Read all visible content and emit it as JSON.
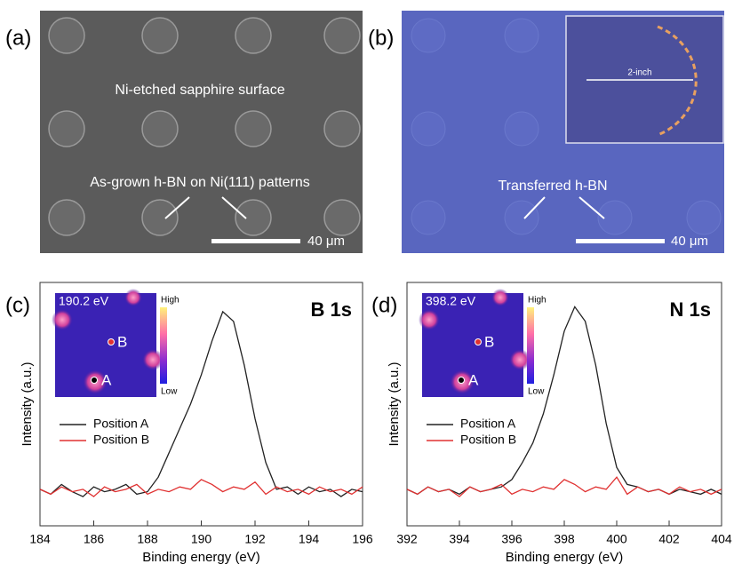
{
  "images": [
    {
      "label": "(a)",
      "annotations": [
        "Ni-etched sapphire surface",
        "As-grown h-BN on Ni(111) patterns"
      ],
      "scale_bar": "40 μm"
    },
    {
      "label": "(b)",
      "annotations": [
        "Transferred h-BN"
      ],
      "scale_bar": "40 μm",
      "inset_label": "2-inch"
    }
  ],
  "chart_data": [
    {
      "type": "line",
      "panel_label": "(c)",
      "title": "B 1s",
      "x_label": "Binding energy (eV)",
      "y_label": "Intensity (a.u.)",
      "inset": {
        "energy": "190.2 eV",
        "high": "High",
        "low": "Low",
        "point_a": "A",
        "point_b": "B"
      },
      "x": [
        184,
        184.4,
        184.8,
        185.2,
        185.6,
        186,
        186.4,
        186.8,
        187.2,
        187.6,
        188,
        188.4,
        188.8,
        189.2,
        189.6,
        190,
        190.4,
        190.8,
        191.2,
        191.6,
        192,
        192.4,
        192.8,
        193.2,
        193.6,
        194,
        194.4,
        194.8,
        195.2,
        195.6,
        196
      ],
      "xlim": [
        184,
        196
      ],
      "xticks": [
        184,
        186,
        188,
        190,
        192,
        194,
        196
      ],
      "ylim": [
        0,
        100
      ],
      "series": [
        {
          "name": "Position A",
          "color": "#222222",
          "values": [
            15,
            13,
            17,
            14,
            12,
            16,
            14,
            15,
            17,
            13,
            14,
            20,
            30,
            40,
            50,
            62,
            76,
            88,
            84,
            66,
            44,
            26,
            15,
            16,
            13,
            16,
            14,
            15,
            12,
            15,
            14
          ]
        },
        {
          "name": "Position B",
          "color": "#e03030",
          "values": [
            15,
            13,
            16,
            14,
            15,
            12,
            16,
            14,
            15,
            17,
            13,
            15,
            14,
            16,
            15,
            19,
            17,
            14,
            16,
            15,
            18,
            13,
            16,
            14,
            15,
            13,
            16,
            14,
            15,
            13,
            16
          ]
        }
      ]
    },
    {
      "type": "line",
      "panel_label": "(d)",
      "title": "N 1s",
      "x_label": "Binding energy (eV)",
      "y_label": "Intensity (a.u.)",
      "inset": {
        "energy": "398.2 eV",
        "high": "High",
        "low": "Low",
        "point_a": "A",
        "point_b": "B"
      },
      "x": [
        392,
        392.4,
        392.8,
        393.2,
        393.6,
        394,
        394.4,
        394.8,
        395.2,
        395.6,
        396,
        396.4,
        396.8,
        397.2,
        397.6,
        398,
        398.4,
        398.8,
        399.2,
        399.6,
        400,
        400.4,
        400.8,
        401.2,
        401.6,
        402,
        402.4,
        402.8,
        403.2,
        403.6,
        404
      ],
      "xlim": [
        392,
        404
      ],
      "xticks": [
        392,
        394,
        396,
        398,
        400,
        402,
        404
      ],
      "ylim": [
        0,
        100
      ],
      "series": [
        {
          "name": "Position A",
          "color": "#222222",
          "values": [
            15,
            13,
            16,
            14,
            15,
            13,
            16,
            14,
            15,
            16,
            19,
            26,
            34,
            46,
            62,
            80,
            90,
            84,
            66,
            42,
            24,
            17,
            16,
            14,
            15,
            13,
            15,
            14,
            13,
            15,
            13
          ]
        },
        {
          "name": "Position B",
          "color": "#e03030",
          "values": [
            15,
            13,
            16,
            14,
            15,
            12,
            16,
            14,
            15,
            17,
            13,
            15,
            14,
            16,
            15,
            19,
            17,
            14,
            16,
            15,
            20,
            13,
            16,
            14,
            15,
            13,
            16,
            14,
            15,
            13,
            15
          ]
        }
      ]
    }
  ]
}
